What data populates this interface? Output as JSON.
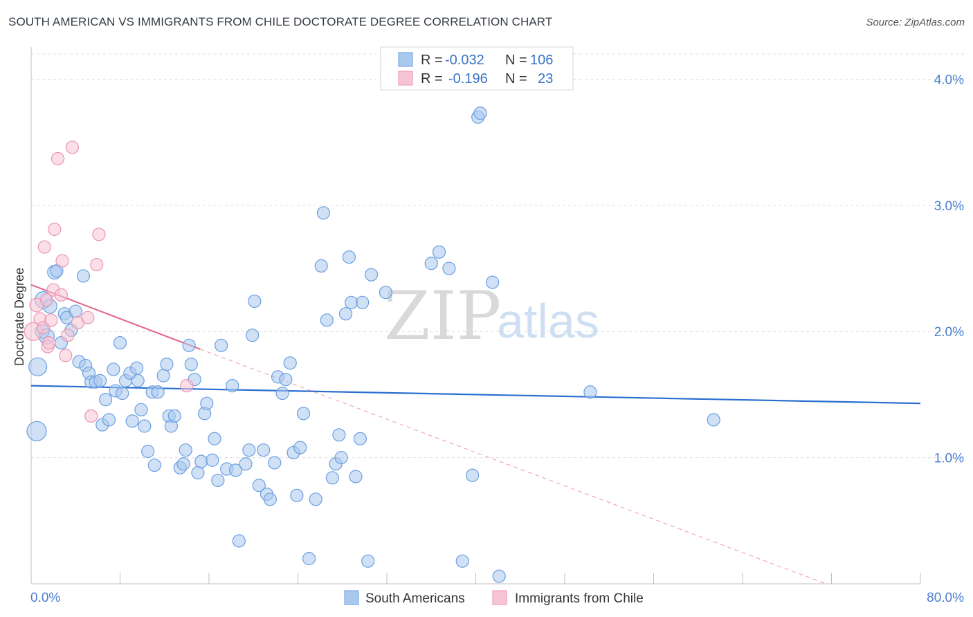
{
  "header": {
    "title": "SOUTH AMERICAN VS IMMIGRANTS FROM CHILE DOCTORATE DEGREE CORRELATION CHART",
    "source": "Source: ZipAtlas.com"
  },
  "watermark": {
    "zip": "ZIP",
    "atlas": "atlas"
  },
  "legend_box": {
    "rows": [
      {
        "r_label": "R =",
        "r_value": "-0.032",
        "n_label": "N =",
        "n_value": "106",
        "color": "#7eaee6"
      },
      {
        "r_label": "R =",
        "r_value": "-0.196",
        "n_label": "N =",
        "n_value": "23",
        "color": "#f2a6bf"
      }
    ]
  },
  "bottom_legend": {
    "items": [
      {
        "label": "South Americans",
        "color": "#7eaee6"
      },
      {
        "label": "Immigrants from Chile",
        "color": "#f2a6bf"
      }
    ]
  },
  "colors": {
    "blue_fill": "#a9c8ee",
    "blue_stroke": "#6a9fe0",
    "blue_line": "#2a6fd0",
    "pink_fill": "#f7c4d4",
    "pink_stroke": "#eb93b1",
    "pink_line": "#e36a95",
    "grid": "#dddddd",
    "tick_label": "#4a7fcf"
  },
  "chart_data": {
    "type": "scatter",
    "title": "SOUTH AMERICAN VS IMMIGRANTS FROM CHILE DOCTORATE DEGREE CORRELATION CHART",
    "xlabel": "",
    "ylabel": "Doctorate Degree",
    "xlim": [
      0,
      80
    ],
    "ylim": [
      0,
      4.2
    ],
    "x_tick_labels": [
      "0.0%",
      "80.0%"
    ],
    "y_ticks": [
      1.0,
      2.0,
      3.0,
      4.0
    ],
    "y_tick_labels": [
      "1.0%",
      "2.0%",
      "3.0%",
      "4.0%"
    ],
    "grid": true,
    "series": [
      {
        "name": "South Americans",
        "trend": {
          "x": [
            0,
            80
          ],
          "y": [
            1.57,
            1.43
          ],
          "dashed": false
        },
        "points": [
          [
            0.5,
            1.21,
            14
          ],
          [
            0.6,
            1.72,
            13
          ],
          [
            1.0,
            2.0,
            10
          ],
          [
            1.1,
            2.25,
            12
          ],
          [
            1.4,
            1.96,
            11
          ],
          [
            1.7,
            2.2,
            10
          ],
          [
            2.1,
            2.47,
            10
          ],
          [
            2.3,
            2.48,
            9
          ],
          [
            2.7,
            1.91,
            9
          ],
          [
            3.0,
            2.14,
            9
          ],
          [
            3.2,
            2.11,
            9
          ],
          [
            3.6,
            2.01,
            9
          ],
          [
            4.0,
            2.16,
            9
          ],
          [
            4.3,
            1.76,
            9
          ],
          [
            4.7,
            2.44,
            9
          ],
          [
            4.9,
            1.73,
            9
          ],
          [
            5.2,
            1.67,
            9
          ],
          [
            5.4,
            1.6,
            9
          ],
          [
            5.8,
            1.6,
            9
          ],
          [
            6.2,
            1.61,
            9
          ],
          [
            6.4,
            1.26,
            9
          ],
          [
            6.7,
            1.46,
            9
          ],
          [
            7.0,
            1.3,
            9
          ],
          [
            7.4,
            1.7,
            9
          ],
          [
            7.6,
            1.53,
            9
          ],
          [
            8.0,
            1.91,
            9
          ],
          [
            8.2,
            1.51,
            9
          ],
          [
            8.5,
            1.61,
            9
          ],
          [
            8.9,
            1.67,
            9
          ],
          [
            9.1,
            1.29,
            9
          ],
          [
            9.5,
            1.71,
            9
          ],
          [
            9.6,
            1.61,
            9
          ],
          [
            9.9,
            1.38,
            9
          ],
          [
            10.2,
            1.25,
            9
          ],
          [
            10.5,
            1.05,
            9
          ],
          [
            10.9,
            1.52,
            9
          ],
          [
            11.1,
            0.94,
            9
          ],
          [
            11.4,
            1.52,
            9
          ],
          [
            11.9,
            1.65,
            9
          ],
          [
            12.2,
            1.74,
            9
          ],
          [
            12.4,
            1.33,
            9
          ],
          [
            12.6,
            1.25,
            9
          ],
          [
            12.9,
            1.33,
            9
          ],
          [
            13.4,
            0.92,
            9
          ],
          [
            13.7,
            0.95,
            9
          ],
          [
            13.9,
            1.06,
            9
          ],
          [
            14.2,
            1.89,
            9
          ],
          [
            14.4,
            1.74,
            9
          ],
          [
            14.7,
            1.62,
            9
          ],
          [
            15.0,
            0.88,
            9
          ],
          [
            15.3,
            0.97,
            9
          ],
          [
            15.6,
            1.35,
            9
          ],
          [
            15.8,
            1.43,
            9
          ],
          [
            16.3,
            0.98,
            9
          ],
          [
            16.5,
            1.15,
            9
          ],
          [
            16.8,
            0.82,
            9
          ],
          [
            17.1,
            1.89,
            9
          ],
          [
            17.6,
            0.91,
            9
          ],
          [
            18.1,
            1.57,
            9
          ],
          [
            18.4,
            0.9,
            9
          ],
          [
            18.7,
            0.34,
            9
          ],
          [
            19.3,
            0.95,
            9
          ],
          [
            19.6,
            1.06,
            9
          ],
          [
            19.9,
            1.97,
            9
          ],
          [
            20.1,
            2.24,
            9
          ],
          [
            20.5,
            0.78,
            9
          ],
          [
            20.9,
            1.06,
            9
          ],
          [
            21.2,
            0.71,
            9
          ],
          [
            21.5,
            0.67,
            9
          ],
          [
            21.9,
            0.96,
            9
          ],
          [
            22.2,
            1.64,
            9
          ],
          [
            22.6,
            1.51,
            9
          ],
          [
            22.9,
            1.62,
            9
          ],
          [
            23.3,
            1.75,
            9
          ],
          [
            23.6,
            1.04,
            9
          ],
          [
            23.9,
            0.7,
            9
          ],
          [
            24.2,
            1.08,
            9
          ],
          [
            24.5,
            1.35,
            9
          ],
          [
            25.0,
            0.2,
            9
          ],
          [
            25.6,
            0.67,
            9
          ],
          [
            26.1,
            2.52,
            9
          ],
          [
            26.3,
            2.94,
            9
          ],
          [
            26.6,
            2.09,
            9
          ],
          [
            27.1,
            0.84,
            9
          ],
          [
            27.4,
            0.95,
            9
          ],
          [
            27.7,
            1.18,
            9
          ],
          [
            27.9,
            1.0,
            9
          ],
          [
            28.3,
            2.14,
            9
          ],
          [
            28.6,
            2.59,
            9
          ],
          [
            28.8,
            2.23,
            9
          ],
          [
            29.2,
            0.85,
            9
          ],
          [
            29.6,
            1.15,
            9
          ],
          [
            29.8,
            2.23,
            9
          ],
          [
            30.3,
            0.18,
            9
          ],
          [
            30.6,
            2.45,
            9
          ],
          [
            31.9,
            2.31,
            9
          ],
          [
            36.0,
            2.54,
            9
          ],
          [
            36.7,
            2.63,
            9
          ],
          [
            37.6,
            2.5,
            9
          ],
          [
            38.8,
            0.18,
            9
          ],
          [
            39.7,
            0.86,
            9
          ],
          [
            40.2,
            3.7,
            9
          ],
          [
            40.4,
            3.73,
            9
          ],
          [
            41.5,
            2.39,
            9
          ],
          [
            42.1,
            0.06,
            9
          ],
          [
            50.3,
            1.52,
            9
          ],
          [
            61.4,
            1.3,
            9
          ]
        ]
      },
      {
        "name": "Immigrants from Chile",
        "trend": {
          "x": [
            0,
            15.2
          ],
          "y": [
            2.37,
            1.86
          ],
          "dashed": false,
          "extension": {
            "x": [
              15.2,
              71.5
            ],
            "y": [
              1.86,
              0.0
            ]
          }
        },
        "points": [
          [
            0.2,
            2.0,
            13
          ],
          [
            0.5,
            2.21,
            10
          ],
          [
            0.8,
            2.1,
            9
          ],
          [
            1.1,
            2.03,
            9
          ],
          [
            1.2,
            2.67,
            9
          ],
          [
            1.5,
            1.88,
            9
          ],
          [
            1.6,
            1.91,
            9
          ],
          [
            1.8,
            2.09,
            9
          ],
          [
            2.0,
            2.33,
            9
          ],
          [
            2.1,
            2.81,
            9
          ],
          [
            2.4,
            3.37,
            9
          ],
          [
            2.7,
            2.29,
            9
          ],
          [
            2.8,
            2.56,
            9
          ],
          [
            3.1,
            1.81,
            9
          ],
          [
            3.3,
            1.97,
            9
          ],
          [
            3.7,
            3.46,
            9
          ],
          [
            4.2,
            2.07,
            9
          ],
          [
            5.1,
            2.11,
            9
          ],
          [
            5.4,
            1.33,
            9
          ],
          [
            5.9,
            2.53,
            9
          ],
          [
            6.1,
            2.77,
            9
          ],
          [
            14.0,
            1.57,
            9
          ],
          [
            1.4,
            2.25,
            9
          ]
        ]
      }
    ]
  }
}
